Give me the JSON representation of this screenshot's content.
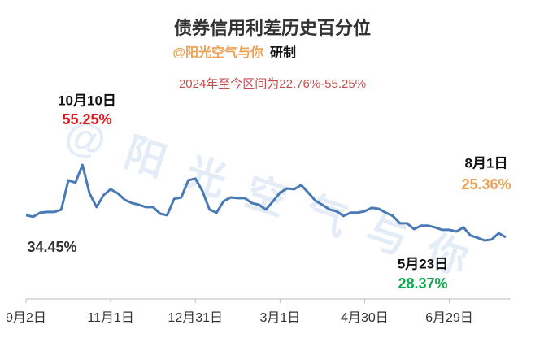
{
  "chart_data": {
    "type": "line",
    "title": "债券信用利差历史百分位",
    "subtitle": "@阳光空气与你",
    "subtitle_suffix": "研制",
    "note": "2024年至今区间为22.76%-55.25%",
    "watermark": "@阳光空气与你",
    "categories": [
      "9月2日",
      null,
      null,
      null,
      null,
      null,
      null,
      null,
      null,
      null,
      null,
      null,
      "11月1日",
      null,
      null,
      null,
      null,
      null,
      null,
      null,
      null,
      null,
      null,
      null,
      "12月31日",
      null,
      null,
      null,
      null,
      null,
      null,
      null,
      null,
      null,
      null,
      null,
      "3月1日",
      null,
      null,
      null,
      null,
      null,
      null,
      null,
      null,
      null,
      null,
      null,
      "4月30日",
      null,
      null,
      null,
      null,
      null,
      null,
      null,
      null,
      null,
      null,
      null,
      "6月29日",
      null,
      null,
      null,
      null,
      null,
      null,
      null,
      null
    ],
    "series": [
      {
        "name": "信用利差历史百分位",
        "color": "#4a7ab5",
        "values": [
          34.45,
          33.8,
          35.5,
          35.8,
          35.8,
          36.8,
          48.9,
          47.9,
          55.25,
          43.5,
          37.8,
          42.8,
          45.2,
          43.5,
          40.8,
          39.5,
          38.8,
          37.8,
          37.8,
          35.1,
          34.45,
          41.2,
          41.8,
          48.9,
          49.6,
          44.5,
          36.8,
          35.5,
          40.2,
          41.8,
          41.5,
          41.5,
          39.5,
          38.8,
          36.8,
          40.2,
          43.8,
          45.5,
          45.2,
          46.9,
          43.8,
          40.5,
          38.8,
          36.8,
          36.1,
          34.1,
          35.5,
          35.5,
          36.1,
          37.5,
          37.1,
          35.5,
          34.1,
          31.1,
          31.1,
          28.7,
          30.1,
          30.1,
          29.4,
          28.4,
          28.4,
          27.7,
          29.4,
          26.1,
          25.1,
          24.0,
          24.4,
          27.0,
          25.36
        ]
      }
    ],
    "annotations": [
      {
        "date": "10月10日",
        "text": "55.25%",
        "color": "#e8141b"
      },
      {
        "text": "34.45%",
        "color": "#333333"
      },
      {
        "date": "8月1日",
        "text": "25.36%",
        "color": "#f0a050"
      },
      {
        "date": "5月23日",
        "text": "28.37%",
        "color": "#12a650"
      }
    ]
  }
}
